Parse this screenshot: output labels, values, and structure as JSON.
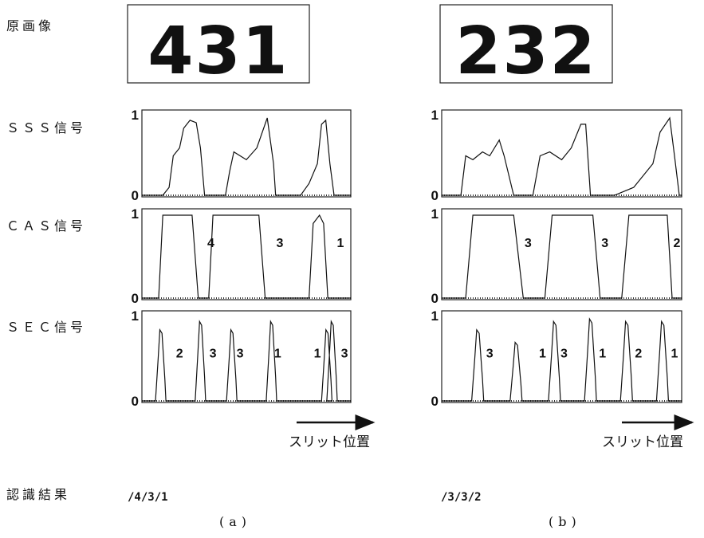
{
  "original_label": "原画像",
  "signal_labels": [
    "ＳＳＳ信号",
    "ＣＡＳ信号",
    "ＳＥＣ信号"
  ],
  "result_label": "認識結果",
  "panels": [
    {
      "image_text": "431",
      "axis_label": "スリット位置",
      "result": "/4/3/1",
      "caption": "(a)",
      "plots": [
        {
          "ymax": "1",
          "ymin": "0"
        },
        {
          "ymax": "1",
          "ymin": "0",
          "peak_labels": [
            "4",
            "3",
            "1"
          ]
        },
        {
          "ymax": "1",
          "ymin": "0",
          "peak_labels": [
            "2",
            "3",
            "3",
            "1",
            "1",
            "3"
          ]
        }
      ]
    },
    {
      "image_text": "232",
      "axis_label": "スリット位置",
      "result": "/3/3/2",
      "caption": "(b)",
      "plots": [
        {
          "ymax": "1",
          "ymin": "0"
        },
        {
          "ymax": "1",
          "ymin": "0",
          "peak_labels": [
            "3",
            "3",
            "2"
          ]
        },
        {
          "ymax": "1",
          "ymin": "0",
          "peak_labels": [
            "3",
            "1",
            "3",
            "1",
            "2",
            "1"
          ]
        }
      ]
    }
  ]
}
